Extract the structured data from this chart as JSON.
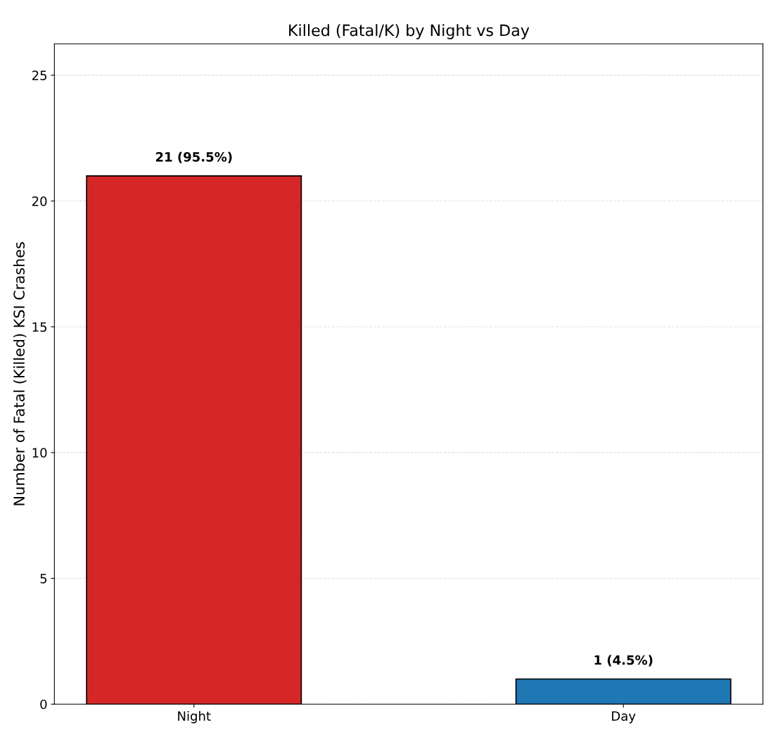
{
  "chart_data": {
    "type": "bar",
    "title": "Killed (Fatal/K) by Night vs Day",
    "ylabel": "Number of Fatal (Killed) KSI Crashes",
    "categories": [
      "Night",
      "Day"
    ],
    "values": [
      21,
      1
    ],
    "colors": [
      "#d62728",
      "#1f77b4"
    ],
    "value_labels": [
      "21 (95.5%)",
      "1 (4.5%)"
    ],
    "ylim": [
      0,
      26.25
    ],
    "yticks": [
      0,
      5,
      10,
      15,
      20,
      25
    ],
    "grid": "y"
  }
}
